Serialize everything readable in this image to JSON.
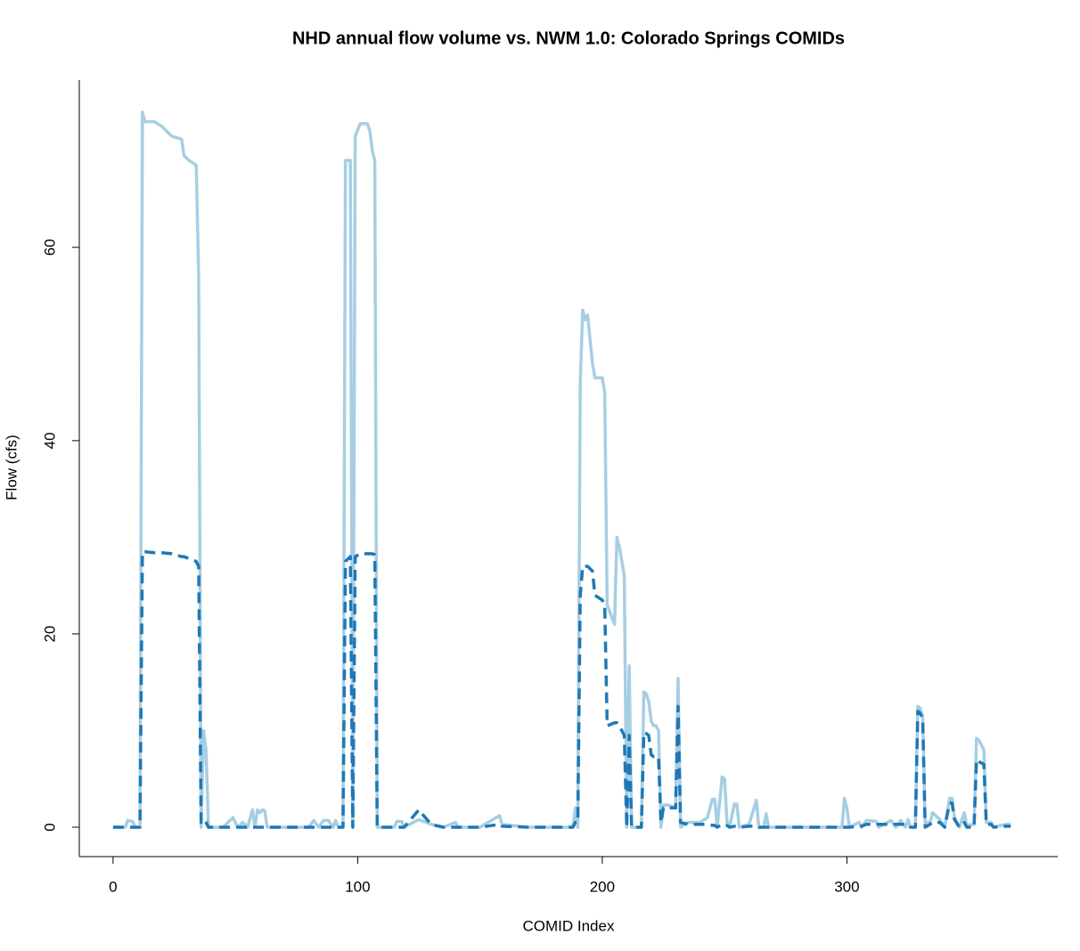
{
  "chart_data": {
    "type": "line",
    "title": "NHD annual flow volume vs. NWM 1.0: Colorado Springs COMIDs",
    "x_label": "COMID Index",
    "y_label": "Flow (cfs)",
    "xlim": [
      -13.8,
      386.2
    ],
    "ylim": [
      -3.04,
      77.3
    ],
    "xticks": [
      0,
      100,
      200,
      300
    ],
    "yticks": [
      0,
      20,
      40,
      60
    ],
    "x": [
      0,
      5,
      6,
      8,
      9,
      11,
      12,
      13,
      17,
      20,
      24,
      28,
      29,
      31,
      34,
      35,
      36,
      37,
      38,
      39,
      45,
      49,
      51,
      53,
      55,
      57,
      58,
      59,
      60,
      61,
      62,
      63,
      70,
      80,
      82,
      84,
      86,
      88,
      90,
      91,
      92,
      94,
      95,
      97,
      98,
      99,
      101,
      104,
      105,
      106,
      107,
      108,
      115,
      116,
      118,
      119,
      125,
      130,
      135,
      140,
      141,
      150,
      158,
      159,
      170,
      180,
      188,
      189,
      190,
      191,
      192,
      193,
      194,
      196,
      197,
      200,
      201,
      202,
      205,
      206,
      207,
      209,
      210,
      211,
      212,
      215,
      216,
      217,
      218,
      219,
      220,
      221,
      222,
      223,
      224,
      225,
      227,
      230,
      231,
      232,
      235,
      240,
      243,
      245,
      246,
      247,
      249,
      250,
      251,
      252,
      254,
      255,
      256,
      260,
      263,
      264,
      266,
      267,
      268,
      275,
      290,
      298,
      299,
      300,
      301,
      305,
      306,
      308,
      312,
      313,
      318,
      320,
      322,
      324,
      325,
      326,
      328,
      329,
      330,
      331,
      332,
      334,
      335,
      338,
      340,
      342,
      343,
      344,
      346,
      348,
      349,
      352,
      353,
      354,
      356,
      357,
      359,
      360,
      365,
      367
    ],
    "series": [
      {
        "color": "#a6cee3",
        "linestyle": "solid",
        "values": [
          0,
          0,
          0.7,
          0.6,
          0,
          0,
          74,
          73,
          73,
          72.5,
          71.5,
          71.2,
          69.5,
          69,
          68.5,
          57,
          0,
          10,
          8,
          0,
          0,
          1,
          0,
          0.5,
          0,
          1.8,
          0,
          1.8,
          1.5,
          1.8,
          1.7,
          0,
          0,
          0,
          0.7,
          0,
          0.7,
          0.7,
          0,
          0.7,
          0,
          0,
          69,
          69,
          0,
          71.5,
          72.8,
          72.8,
          72,
          70,
          69,
          0,
          0,
          0.6,
          0.6,
          0,
          0.8,
          0.3,
          0,
          0.5,
          0,
          0,
          1.2,
          0.3,
          0,
          0,
          0,
          2,
          0,
          46,
          53.5,
          52.5,
          53,
          48,
          46.5,
          46.5,
          45,
          23,
          21,
          30,
          29,
          26,
          0,
          16.7,
          0,
          0,
          0,
          14,
          13.8,
          13,
          11,
          10.5,
          10.5,
          10,
          0,
          2.3,
          2.3,
          2,
          15.4,
          0,
          0.5,
          0.5,
          1,
          2.9,
          2.9,
          0,
          5.2,
          5,
          0.5,
          0,
          2.4,
          2.4,
          0,
          0.3,
          2.8,
          0,
          0,
          1.4,
          0,
          0,
          0,
          0,
          3,
          2,
          0,
          0.5,
          0,
          0.7,
          0.6,
          0,
          0.7,
          0,
          0.7,
          0,
          0.8,
          0,
          0,
          12.5,
          12.3,
          11.5,
          0.5,
          0.5,
          1.5,
          0.8,
          0,
          3,
          3,
          1,
          0,
          1.5,
          0.2,
          0.3,
          9.2,
          9,
          8,
          0.5,
          0.5,
          0,
          0.3,
          0.3
        ]
      },
      {
        "color": "#1f78b4",
        "linestyle": "dashed",
        "values": [
          0,
          0,
          0,
          0,
          0,
          0,
          28.5,
          28.5,
          28.4,
          28.4,
          28.3,
          28,
          28,
          27.8,
          27.5,
          27,
          0.5,
          0.8,
          0.5,
          0,
          0,
          0,
          0,
          0,
          0,
          0,
          0,
          0,
          0,
          0,
          0,
          0,
          0,
          0,
          0,
          0,
          0,
          0,
          0,
          0,
          0,
          0,
          27.5,
          28,
          0,
          28,
          28.3,
          28.3,
          28.3,
          28.3,
          28.2,
          0,
          0,
          0,
          0,
          0,
          1.8,
          0.3,
          0,
          0,
          0,
          0,
          0.3,
          0.1,
          0,
          0,
          0,
          0.5,
          0.5,
          24,
          27,
          27,
          27,
          26.5,
          24,
          23.5,
          23,
          10.5,
          10.8,
          10.8,
          10.5,
          9.5,
          0,
          9.5,
          0,
          0,
          0,
          9.8,
          9.7,
          9.5,
          7.5,
          7.3,
          7.3,
          7.3,
          0.5,
          2,
          2,
          2,
          12.5,
          0.5,
          0.3,
          0.3,
          0.3,
          0.2,
          0.2,
          0,
          0.3,
          0.3,
          0.2,
          0,
          0.1,
          0.1,
          0,
          0.1,
          0.1,
          0,
          0,
          0,
          0,
          0,
          0,
          0,
          0,
          0,
          0,
          0.1,
          0.1,
          0.3,
          0.3,
          0.3,
          0.3,
          0.3,
          0.3,
          0.3,
          0.3,
          0,
          0,
          12,
          11.8,
          11.2,
          0,
          0.3,
          0.5,
          0.5,
          0,
          2.5,
          2.5,
          0.8,
          0,
          0.5,
          0,
          0,
          7,
          6.8,
          6.5,
          0.3,
          0.3,
          0,
          0.1,
          0.1
        ]
      }
    ]
  }
}
